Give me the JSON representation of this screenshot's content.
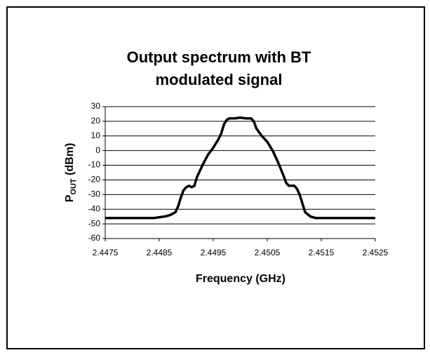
{
  "chart_data": {
    "type": "line",
    "title_lines": [
      "Output spectrum with BT",
      "modulated signal"
    ],
    "xlabel": "Frequency (GHz)",
    "ylabel": {
      "main": "P",
      "sub": "OUT",
      "rest": " (dBm)"
    },
    "x": [
      2.4475,
      2.4478,
      2.4481,
      2.4484,
      2.4486,
      2.4487,
      2.4488,
      2.44885,
      2.4489,
      2.44895,
      2.449,
      2.44905,
      2.4491,
      2.44915,
      2.4492,
      2.4493,
      2.4494,
      2.4495,
      2.4496,
      2.44965,
      2.4497,
      2.44975,
      2.4498,
      2.4499,
      2.45,
      2.4501,
      2.4502,
      2.45025,
      2.4503,
      2.4504,
      2.4505,
      2.4506,
      2.4507,
      2.4508,
      2.45085,
      2.4509,
      2.451,
      2.45105,
      2.4511,
      2.45115,
      2.4512,
      2.4513,
      2.4514,
      2.4517,
      2.452,
      2.4523,
      2.4525
    ],
    "series": [
      {
        "name": "Output spectrum",
        "color": "#000000",
        "values": [
          -46,
          -46,
          -46,
          -46,
          -45,
          -44,
          -42,
          -38,
          -32,
          -27,
          -25,
          -24,
          -25,
          -24,
          -18,
          -10,
          -3,
          2,
          8,
          12,
          18,
          21,
          22,
          22,
          22.5,
          22,
          22,
          20,
          15,
          10,
          6,
          0,
          -8,
          -17,
          -22,
          -24,
          -24,
          -26,
          -30,
          -36,
          -42,
          -45,
          -46,
          -46,
          -46,
          -46,
          -46
        ]
      }
    ],
    "xlim": [
      2.4475,
      2.4525
    ],
    "xticks": [
      2.4475,
      2.4485,
      2.4495,
      2.4505,
      2.4515,
      2.4525
    ],
    "ylim": [
      -60,
      30
    ],
    "yticks": [
      -60,
      -50,
      -40,
      -30,
      -20,
      -10,
      0,
      10,
      20,
      30
    ],
    "grid": true
  }
}
